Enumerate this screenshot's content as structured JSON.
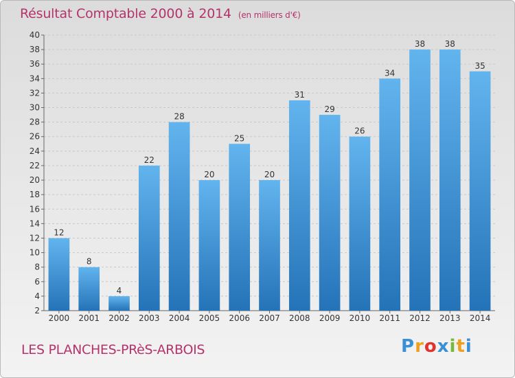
{
  "chart_data": {
    "type": "bar",
    "title": "Résultat Comptable 2000 à 2014",
    "subtitle": "(en milliers d'€)",
    "categories": [
      "2000",
      "2001",
      "2002",
      "2003",
      "2004",
      "2005",
      "2006",
      "2007",
      "2008",
      "2009",
      "2010",
      "2011",
      "2012",
      "2013",
      "2014"
    ],
    "values": [
      12,
      8,
      4,
      22,
      28,
      20,
      25,
      20,
      31,
      29,
      26,
      34,
      38,
      38,
      35
    ],
    "ylim": [
      2,
      40
    ],
    "yticks": [
      2,
      4,
      6,
      8,
      10,
      12,
      14,
      16,
      18,
      20,
      22,
      24,
      26,
      28,
      30,
      32,
      34,
      36,
      38,
      40
    ],
    "grid": true,
    "xlabel": "",
    "ylabel": ""
  },
  "location_name": "LES PLANCHES-PRèS-ARBOIS",
  "logo": {
    "letters": [
      "P",
      "r",
      "o",
      "x",
      "i",
      "t",
      "i"
    ],
    "colors": [
      "#3b8fd4",
      "#f0a020",
      "#e0342c",
      "#3b8fd4",
      "#78b83a",
      "#f0a020",
      "#3b8fd4"
    ]
  },
  "colors": {
    "title": "#b4336b",
    "bar_top": "#62b4ee",
    "bar_bottom": "#2473b8",
    "grid": "#c8c8c8"
  }
}
